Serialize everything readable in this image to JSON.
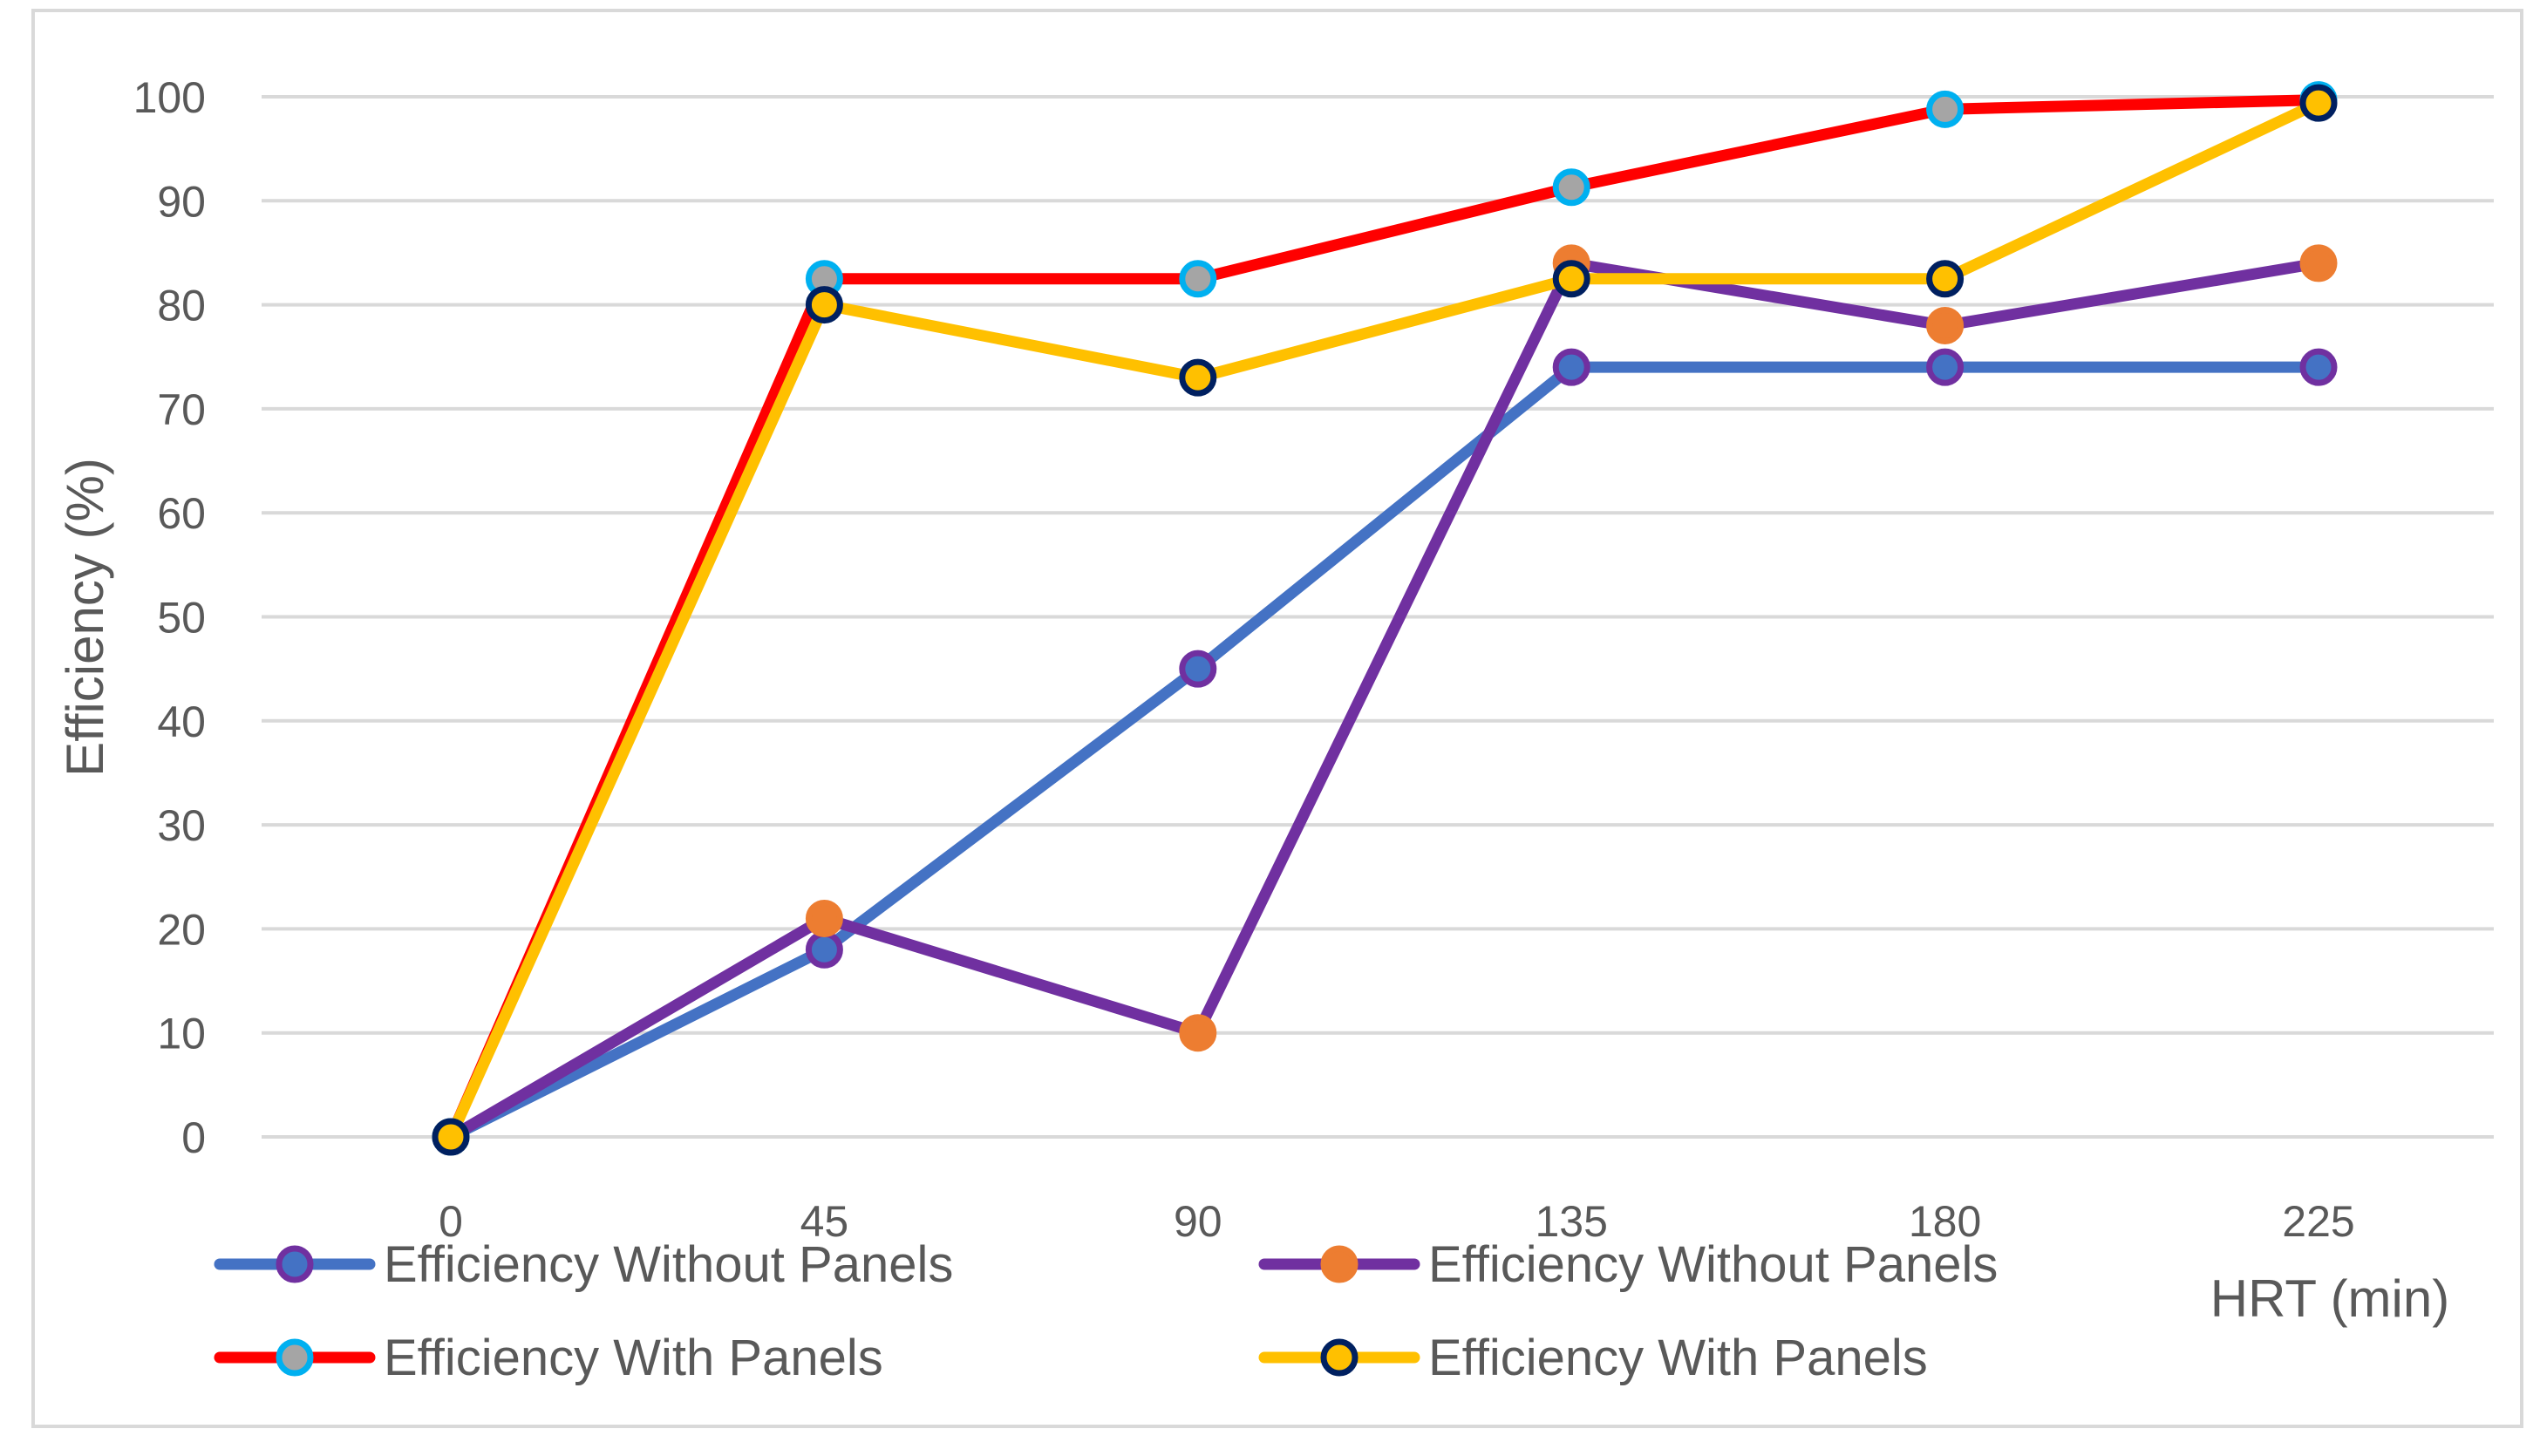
{
  "chart_data": {
    "type": "line",
    "title": "",
    "xlabel": "HRT (min)",
    "ylabel": "Efficiency (%)",
    "x": [
      0,
      45,
      90,
      135,
      180,
      225
    ],
    "categories": [
      "0",
      "45",
      "90",
      "135",
      "180",
      "225"
    ],
    "ylim": [
      0,
      100
    ],
    "yticks": [
      0,
      10,
      20,
      30,
      40,
      50,
      60,
      70,
      80,
      90,
      100
    ],
    "grid": true,
    "legend_position": "bottom",
    "series": [
      {
        "name": "Efficiency Without Panels",
        "values": [
          0,
          18,
          45,
          74,
          74,
          74
        ],
        "line_color": "#4472c4",
        "marker_fill": "#4472c4",
        "marker_edge": "#7030a0"
      },
      {
        "name": "Efficiency Without Panels",
        "values": [
          0,
          21,
          10,
          84,
          78,
          84
        ],
        "line_color": "#7030a0",
        "marker_fill": "#ed7d31",
        "marker_edge": "#ed7d31"
      },
      {
        "name": "Efficiency With Panels",
        "values": [
          0,
          82.5,
          82.5,
          91.3,
          98.8,
          99.7
        ],
        "line_color": "#ff0000",
        "marker_fill": "#a5a5a5",
        "marker_edge": "#00b0f0"
      },
      {
        "name": "Efficiency With Panels",
        "values": [
          0,
          80,
          73,
          82.5,
          82.5,
          99.4
        ],
        "line_color": "#ffc000",
        "marker_fill": "#ffc000",
        "marker_edge": "#002060"
      }
    ]
  },
  "colors": {
    "gridline": "#d9d9d9",
    "text": "#595959",
    "frame": "#d9d9d9"
  }
}
